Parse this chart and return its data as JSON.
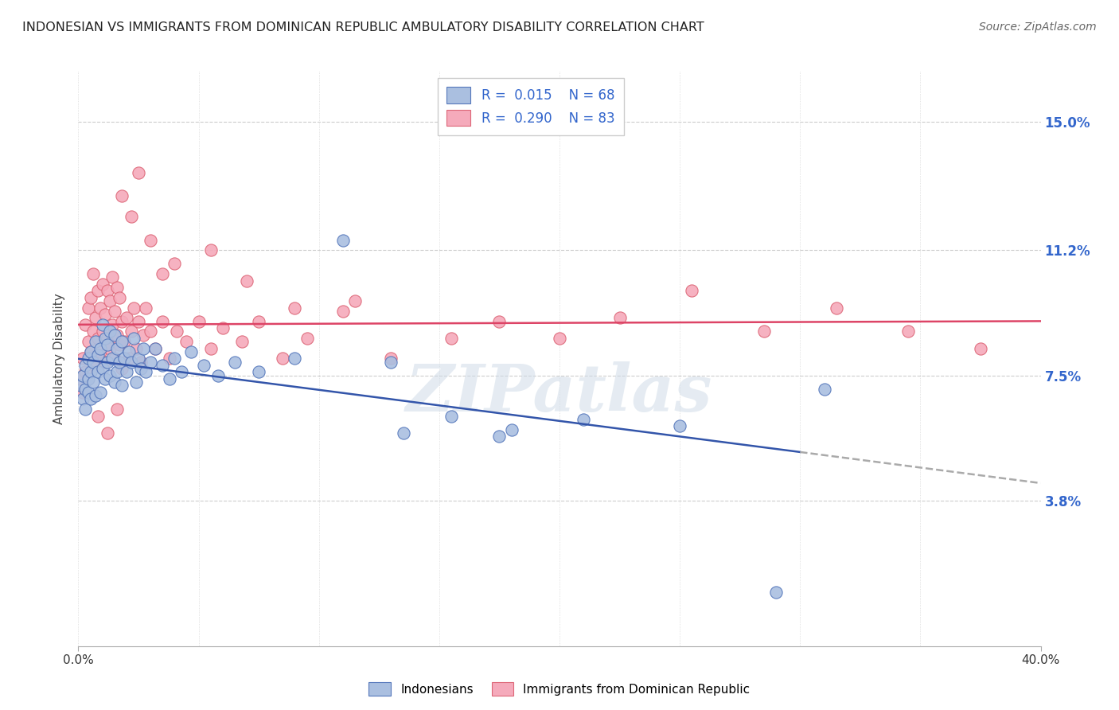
{
  "title": "INDONESIAN VS IMMIGRANTS FROM DOMINICAN REPUBLIC AMBULATORY DISABILITY CORRELATION CHART",
  "source": "Source: ZipAtlas.com",
  "ylabel": "Ambulatory Disability",
  "ytick_vals": [
    0.038,
    0.075,
    0.112,
    0.15
  ],
  "ytick_labels": [
    "3.8%",
    "7.5%",
    "11.2%",
    "15.0%"
  ],
  "xlim": [
    0.0,
    0.4
  ],
  "ylim": [
    -0.005,
    0.165
  ],
  "color_blue_fill": "#AABFE0",
  "color_blue_edge": "#5577BB",
  "color_pink_fill": "#F5AABB",
  "color_pink_edge": "#DD6677",
  "color_line_blue": "#3355AA",
  "color_line_pink": "#DD4466",
  "color_grid": "#CCCCCC",
  "watermark_color": "#D0DCE8",
  "indo_x": [
    0.001,
    0.002,
    0.002,
    0.003,
    0.003,
    0.003,
    0.004,
    0.004,
    0.004,
    0.005,
    0.005,
    0.005,
    0.006,
    0.006,
    0.007,
    0.007,
    0.008,
    0.008,
    0.009,
    0.009,
    0.01,
    0.01,
    0.011,
    0.011,
    0.012,
    0.012,
    0.013,
    0.013,
    0.014,
    0.015,
    0.015,
    0.016,
    0.016,
    0.017,
    0.018,
    0.018,
    0.019,
    0.02,
    0.021,
    0.022,
    0.023,
    0.024,
    0.025,
    0.026,
    0.027,
    0.028,
    0.03,
    0.032,
    0.035,
    0.038,
    0.04,
    0.043,
    0.047,
    0.052,
    0.058,
    0.065,
    0.075,
    0.09,
    0.11,
    0.13,
    0.155,
    0.18,
    0.21,
    0.25,
    0.31,
    0.135,
    0.175,
    0.29
  ],
  "indo_y": [
    0.072,
    0.068,
    0.075,
    0.065,
    0.071,
    0.078,
    0.074,
    0.08,
    0.07,
    0.076,
    0.082,
    0.068,
    0.079,
    0.073,
    0.085,
    0.069,
    0.081,
    0.076,
    0.083,
    0.07,
    0.077,
    0.09,
    0.074,
    0.086,
    0.079,
    0.084,
    0.075,
    0.088,
    0.08,
    0.073,
    0.087,
    0.076,
    0.083,
    0.079,
    0.085,
    0.072,
    0.08,
    0.076,
    0.082,
    0.079,
    0.086,
    0.073,
    0.08,
    0.077,
    0.083,
    0.076,
    0.079,
    0.083,
    0.078,
    0.074,
    0.08,
    0.076,
    0.082,
    0.078,
    0.075,
    0.079,
    0.076,
    0.08,
    0.115,
    0.079,
    0.063,
    0.059,
    0.062,
    0.06,
    0.071,
    0.058,
    0.057,
    0.011
  ],
  "dom_x": [
    0.001,
    0.002,
    0.002,
    0.003,
    0.003,
    0.004,
    0.004,
    0.005,
    0.005,
    0.006,
    0.006,
    0.007,
    0.007,
    0.008,
    0.008,
    0.009,
    0.009,
    0.01,
    0.01,
    0.011,
    0.011,
    0.012,
    0.012,
    0.013,
    0.013,
    0.014,
    0.014,
    0.015,
    0.015,
    0.016,
    0.016,
    0.017,
    0.017,
    0.018,
    0.018,
    0.019,
    0.02,
    0.021,
    0.022,
    0.023,
    0.024,
    0.025,
    0.026,
    0.027,
    0.028,
    0.03,
    0.032,
    0.035,
    0.038,
    0.041,
    0.045,
    0.05,
    0.055,
    0.06,
    0.068,
    0.075,
    0.085,
    0.095,
    0.11,
    0.13,
    0.155,
    0.175,
    0.2,
    0.225,
    0.255,
    0.285,
    0.315,
    0.345,
    0.375,
    0.018,
    0.022,
    0.025,
    0.03,
    0.035,
    0.04,
    0.055,
    0.07,
    0.09,
    0.115,
    0.008,
    0.012,
    0.016
  ],
  "dom_y": [
    0.074,
    0.08,
    0.07,
    0.076,
    0.09,
    0.085,
    0.095,
    0.082,
    0.098,
    0.088,
    0.105,
    0.078,
    0.092,
    0.086,
    0.1,
    0.082,
    0.095,
    0.088,
    0.102,
    0.079,
    0.093,
    0.086,
    0.1,
    0.083,
    0.097,
    0.09,
    0.104,
    0.08,
    0.094,
    0.087,
    0.101,
    0.084,
    0.098,
    0.091,
    0.077,
    0.085,
    0.092,
    0.08,
    0.088,
    0.095,
    0.083,
    0.091,
    0.079,
    0.087,
    0.095,
    0.088,
    0.083,
    0.091,
    0.08,
    0.088,
    0.085,
    0.091,
    0.083,
    0.089,
    0.085,
    0.091,
    0.08,
    0.086,
    0.094,
    0.08,
    0.086,
    0.091,
    0.086,
    0.092,
    0.1,
    0.088,
    0.095,
    0.088,
    0.083,
    0.128,
    0.122,
    0.135,
    0.115,
    0.105,
    0.108,
    0.112,
    0.103,
    0.095,
    0.097,
    0.063,
    0.058,
    0.065
  ]
}
